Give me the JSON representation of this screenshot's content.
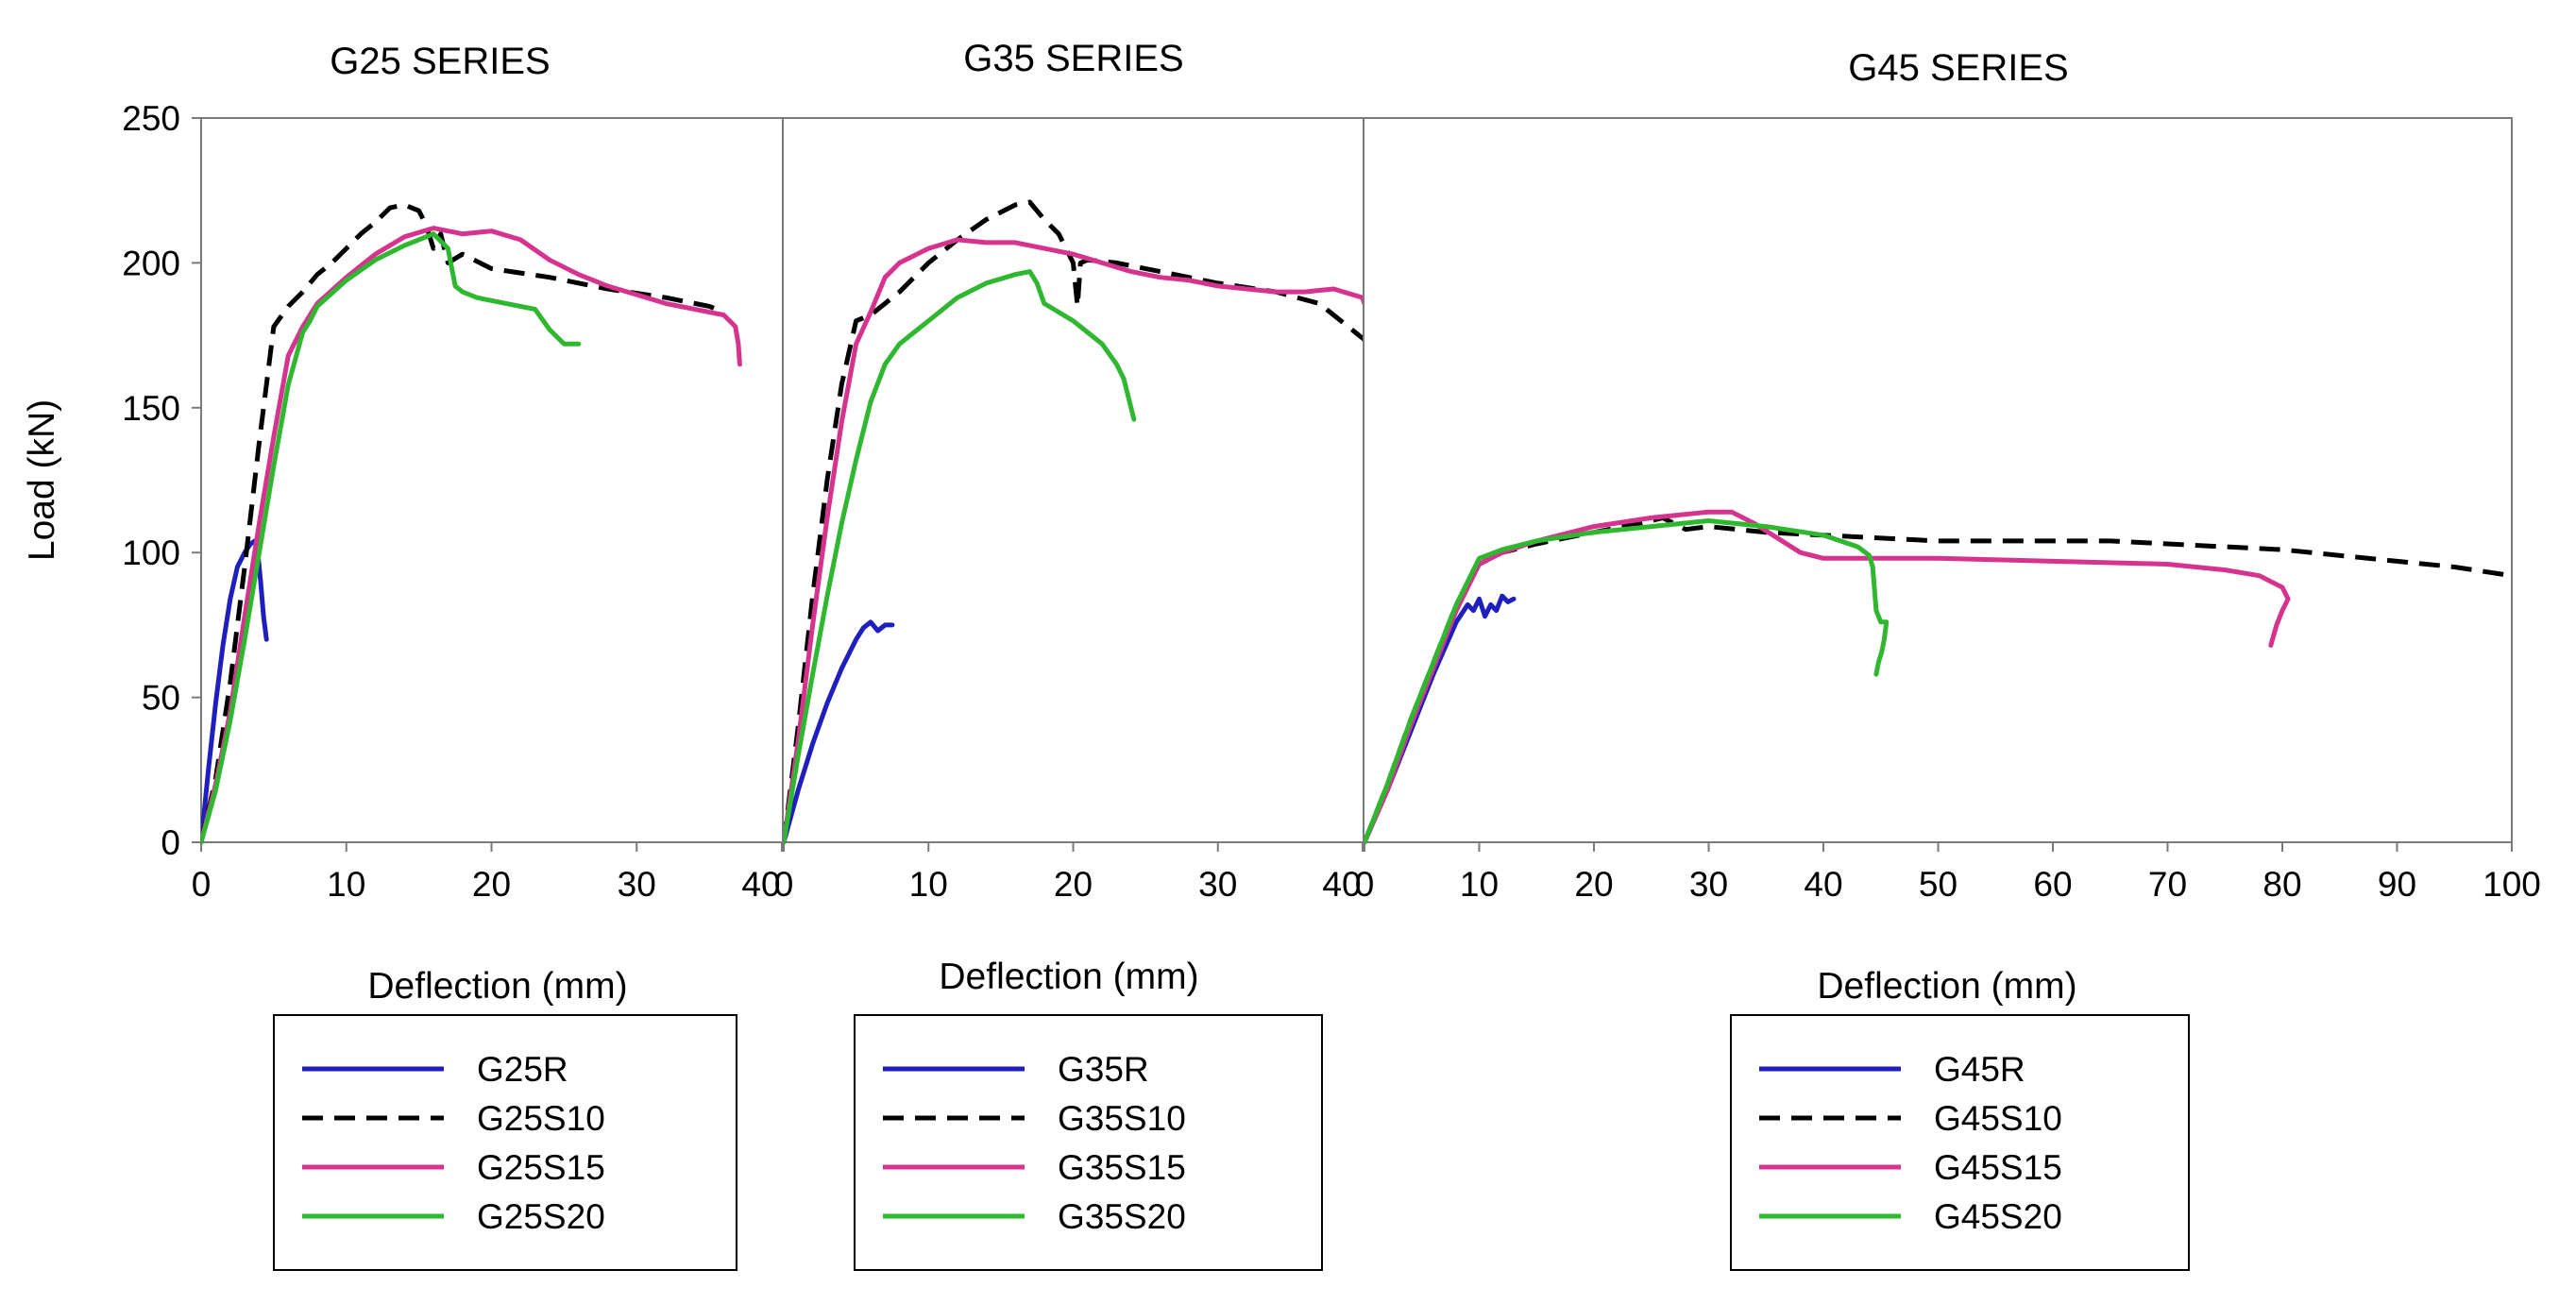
{
  "chart_data": {
    "type": "line",
    "ylabel": "Load (kN)",
    "ylim": [
      0,
      250
    ],
    "yticks": [
      "0",
      "50",
      "100",
      "150",
      "200",
      "250"
    ],
    "grid": false,
    "legend_placement": "below each panel",
    "panels": [
      {
        "title": "G25 SERIES",
        "xlabel": "Deflection (mm)",
        "xlim": [
          0,
          40
        ],
        "xticks": [
          "0",
          "10",
          "20",
          "30",
          "40"
        ],
        "series": [
          {
            "name": "G25R",
            "color": "#1f1fbf",
            "style": "solid",
            "x": [
              0,
              0.5,
              1,
              1.5,
              2,
              2.5,
              3,
              3.4,
              3.7,
              3.9,
              4.1,
              4.3,
              4.5
            ],
            "y": [
              0,
              25,
              48,
              68,
              84,
              95,
              100,
              103,
              104,
              100,
              90,
              78,
              70
            ]
          },
          {
            "name": "G25S10",
            "color": "#000000",
            "style": "dashed",
            "x": [
              0,
              1,
              2,
              3,
              4,
              5,
              6,
              7,
              8,
              9,
              10,
              11,
              12,
              13,
              14,
              15,
              15.5,
              16,
              16.5,
              17,
              18,
              20,
              24,
              28,
              32,
              35,
              36
            ],
            "y": [
              0,
              22,
              55,
              95,
              138,
              178,
              185,
              190,
              196,
              200,
              205,
              210,
              214,
              219,
              220,
              218,
              213,
              205,
              210,
              200,
              203,
              198,
              195,
              191,
              188,
              185,
              183
            ]
          },
          {
            "name": "G25S15",
            "color": "#d6338f",
            "style": "solid",
            "x": [
              0,
              1,
              2,
              3,
              4,
              5,
              6,
              7,
              8,
              10,
              12,
              14,
              16,
              18,
              20,
              22,
              24,
              26,
              28,
              30,
              32,
              34,
              36,
              36.8,
              37,
              37.1
            ],
            "y": [
              0,
              20,
              45,
              78,
              110,
              140,
              168,
              178,
              186,
              195,
              203,
              209,
              212,
              210,
              211,
              208,
              201,
              196,
              192,
              189,
              186,
              184,
              182,
              178,
              172,
              165
            ]
          },
          {
            "name": "G25S20",
            "color": "#2fb82f",
            "style": "solid",
            "x": [
              0,
              1,
              2,
              3,
              4,
              5,
              6,
              7,
              7.5,
              8,
              10,
              12,
              14,
              16,
              17,
              17.5,
              18,
              19,
              21,
              23,
              24,
              25,
              26
            ],
            "y": [
              0,
              18,
              42,
              70,
              100,
              130,
              158,
              176,
              180,
              185,
              194,
              201,
              206,
              210,
              205,
              192,
              190,
              188,
              186,
              184,
              177,
              172,
              172
            ]
          }
        ]
      },
      {
        "title": "G35 SERIES",
        "xlabel": "Deflection (mm)",
        "xlim": [
          0,
          40
        ],
        "xticks": [
          "0",
          "10",
          "20",
          "30",
          "40"
        ],
        "series": [
          {
            "name": "G35R",
            "color": "#1f1fbf",
            "style": "solid",
            "x": [
              0,
              1,
              2,
              3,
              4,
              5,
              5.5,
              6,
              6.5,
              7,
              7.5
            ],
            "y": [
              0,
              18,
              34,
              48,
              60,
              70,
              74,
              76,
              73,
              75,
              75
            ]
          },
          {
            "name": "G35S10",
            "color": "#000000",
            "style": "dashed",
            "x": [
              0,
              1,
              2,
              3,
              4,
              5,
              6,
              8,
              10,
              12,
              14,
              16,
              17,
              18,
              19,
              20,
              20.3,
              20.5,
              21,
              23,
              26,
              30,
              34,
              37,
              39,
              41
            ],
            "y": [
              0,
              40,
              85,
              125,
              158,
              180,
              182,
              190,
              200,
              208,
              215,
              220,
              221,
              215,
              210,
              200,
              185,
              200,
              201,
              200,
              197,
              193,
              190,
              186,
              178,
              170
            ]
          },
          {
            "name": "G35S15",
            "color": "#d6338f",
            "style": "solid",
            "x": [
              0,
              1,
              2,
              3,
              4,
              5,
              6,
              7,
              8,
              10,
              12,
              14,
              16,
              18,
              20,
              22,
              24,
              26,
              28,
              30,
              32,
              34,
              36,
              38,
              40,
              40.5,
              41
            ],
            "y": [
              0,
              35,
              75,
              112,
              145,
              172,
              183,
              195,
              200,
              205,
              208,
              207,
              207,
              205,
              203,
              200,
              197,
              195,
              194,
              192,
              191,
              190,
              190,
              191,
              188,
              180,
              177
            ]
          },
          {
            "name": "G35S20",
            "color": "#2fb82f",
            "style": "solid",
            "x": [
              0,
              1,
              2,
              3,
              4,
              5,
              6,
              7,
              8,
              9,
              10,
              12,
              14,
              16,
              17,
              17.5,
              18,
              19,
              20,
              21,
              22,
              23,
              23.5,
              24,
              24.2
            ],
            "y": [
              0,
              30,
              58,
              85,
              110,
              132,
              152,
              165,
              172,
              176,
              180,
              188,
              193,
              196,
              197,
              193,
              186,
              183,
              180,
              176,
              172,
              165,
              160,
              150,
              146
            ]
          }
        ]
      },
      {
        "title": "G45 SERIES",
        "xlabel": "Deflection (mm)",
        "xlim": [
          0,
          100
        ],
        "xticks": [
          "0",
          "10",
          "20",
          "30",
          "40",
          "50",
          "60",
          "70",
          "80",
          "90",
          "100"
        ],
        "series": [
          {
            "name": "G45R",
            "color": "#1f1fbf",
            "style": "solid",
            "x": [
              0,
              2,
              4,
              6,
              8,
              9,
              9.5,
              10,
              10.5,
              11,
              11.5,
              12,
              12.5,
              13
            ],
            "y": [
              0,
              18,
              38,
              58,
              76,
              82,
              80,
              84,
              78,
              82,
              80,
              85,
              83,
              84
            ]
          },
          {
            "name": "G45S10",
            "color": "#000000",
            "style": "dashed",
            "x": [
              0,
              2,
              4,
              6,
              8,
              10,
              12,
              15,
              20,
              24,
              26,
              28,
              30,
              35,
              40,
              50,
              60,
              65,
              70,
              80,
              90,
              95,
              100
            ],
            "y": [
              0,
              20,
              42,
              62,
              82,
              96,
              100,
              103,
              107,
              110,
              112,
              108,
              109,
              107,
              106,
              104,
              104,
              104,
              103,
              101,
              97,
              95,
              92
            ]
          },
          {
            "name": "G45S15",
            "color": "#d6338f",
            "style": "solid",
            "x": [
              0,
              2,
              4,
              6,
              8,
              10,
              12,
              15,
              20,
              25,
              30,
              32,
              34,
              36,
              38,
              40,
              50,
              60,
              70,
              75,
              78,
              79,
              80,
              80.5,
              80,
              79.5,
              79
            ],
            "y": [
              0,
              18,
              40,
              60,
              80,
              96,
              100,
              104,
              109,
              112,
              114,
              114,
              110,
              105,
              100,
              98,
              98,
              97,
              96,
              94,
              92,
              90,
              88,
              84,
              80,
              75,
              68
            ]
          },
          {
            "name": "G45S20",
            "color": "#2fb82f",
            "style": "solid",
            "x": [
              0,
              2,
              4,
              6,
              8,
              10,
              12,
              15,
              20,
              25,
              30,
              35,
              40,
              43,
              44,
              44.3,
              44.6,
              45,
              45.5,
              45.3,
              45.1,
              44.8,
              44.6
            ],
            "y": [
              0,
              20,
              42,
              62,
              82,
              98,
              101,
              104,
              107,
              109,
              111,
              109,
              106,
              102,
              99,
              95,
              80,
              76,
              76,
              70,
              66,
              62,
              58
            ]
          }
        ]
      }
    ]
  }
}
